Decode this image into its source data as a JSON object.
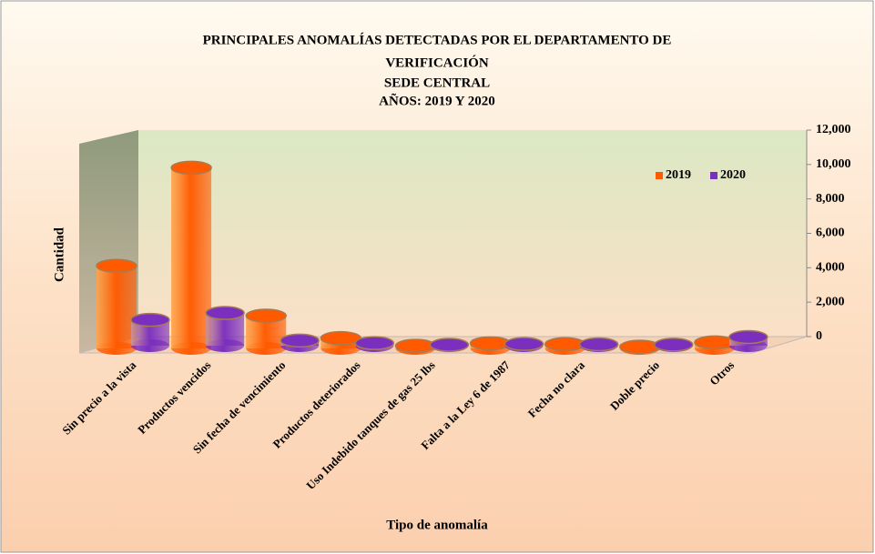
{
  "chart_data": {
    "type": "bar3d",
    "title": [
      "PRINCIPALES  ANOMALÍAS  DETECTADAS  POR EL DEPARTAMENTO  DE",
      "VERIFICACIÓN"
    ],
    "subtitle": [
      "SEDE CENTRAL",
      "AÑOS: 2019 Y 2020"
    ],
    "y_label": "Cantidad",
    "x_label": "Tipo de anomalía",
    "categories": [
      "Sin precio a la vista",
      "Productos vencidos",
      "Sin fecha de vencimiento",
      "Productos deteriorados",
      "Uso Indebido tanques de gas 25 lbs",
      "Falta a la Ley 6 de 1987",
      "Fecha no clara",
      "Doble precio",
      "Otros"
    ],
    "series": [
      {
        "name": "2019",
        "color": "#ff5a00",
        "values": [
          4800,
          10500,
          1900,
          600,
          150,
          300,
          250,
          100,
          350
        ]
      },
      {
        "name": "2020",
        "color": "#7b2fbe",
        "values": [
          1500,
          1900,
          300,
          150,
          50,
          100,
          80,
          60,
          500
        ]
      }
    ],
    "ylim": [
      0,
      12000
    ],
    "yticks": [
      0,
      {
        "value": 2000,
        "label": "2,000"
      },
      {
        "value": 4000,
        "label": "4,000"
      },
      {
        "value": 6000,
        "label": "6,000"
      },
      {
        "value": 8000,
        "label": "8,000"
      },
      {
        "value": 10000,
        "label": "10,000"
      },
      {
        "value": 12000,
        "label": "12,000"
      }
    ],
    "legend": "top-right"
  }
}
